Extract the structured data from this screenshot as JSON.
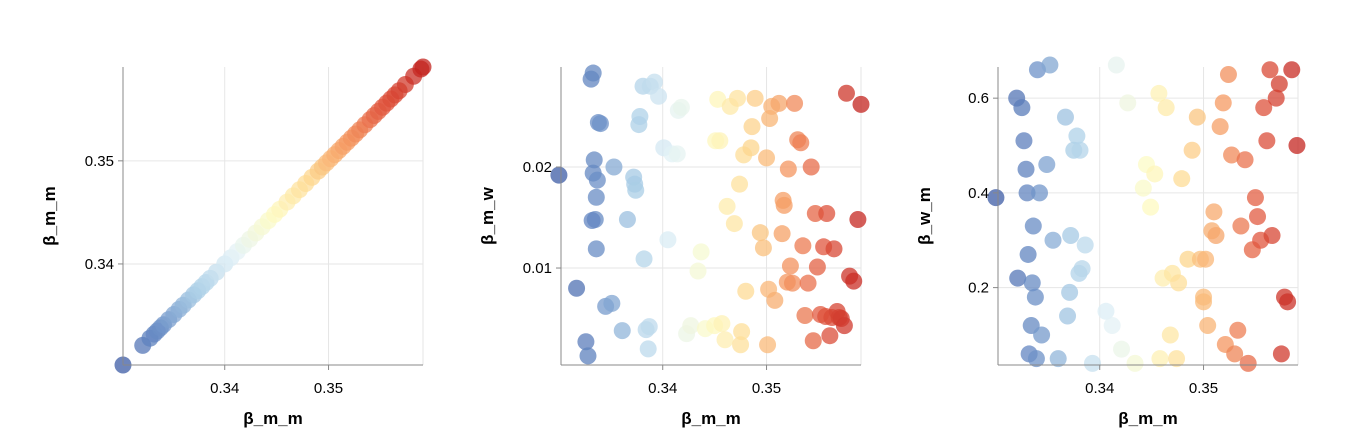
{
  "chart_data": [
    {
      "type": "scatter",
      "xlabel": "β_m_m",
      "ylabel": "β_m_m",
      "xlim": [
        0.3302,
        0.3591
      ],
      "ylim": [
        0.3302,
        0.3591
      ],
      "xticks": [
        0.34,
        0.35
      ],
      "xtick_labels": [
        "0.34",
        "0.35"
      ],
      "yticks": [
        0.34,
        0.35
      ],
      "ytick_labels": [
        "0.34",
        "0.35"
      ],
      "grid": true,
      "x": [
        0.3302,
        0.3321,
        0.3328,
        0.3332,
        0.3335,
        0.3338,
        0.3341,
        0.3346,
        0.3351,
        0.3356,
        0.336,
        0.3365,
        0.337,
        0.3374,
        0.3378,
        0.3382,
        0.3386,
        0.3392,
        0.34,
        0.3406,
        0.3412,
        0.3418,
        0.3424,
        0.343,
        0.3436,
        0.3442,
        0.3448,
        0.3453,
        0.346,
        0.3466,
        0.3472,
        0.3478,
        0.3484,
        0.349,
        0.3494,
        0.3498,
        0.3502,
        0.3506,
        0.351,
        0.3514,
        0.3518,
        0.3522,
        0.3526,
        0.353,
        0.3535,
        0.354,
        0.3544,
        0.3548,
        0.3552,
        0.3556,
        0.356,
        0.3564,
        0.3568,
        0.3574,
        0.3582,
        0.3589,
        0.3591
      ],
      "y": [
        0.3302,
        0.3321,
        0.3328,
        0.3332,
        0.3335,
        0.3338,
        0.3341,
        0.3346,
        0.3351,
        0.3356,
        0.336,
        0.3365,
        0.337,
        0.3374,
        0.3378,
        0.3382,
        0.3386,
        0.3392,
        0.34,
        0.3406,
        0.3412,
        0.3418,
        0.3424,
        0.343,
        0.3436,
        0.3442,
        0.3448,
        0.3453,
        0.346,
        0.3466,
        0.3472,
        0.3478,
        0.3484,
        0.349,
        0.3494,
        0.3498,
        0.3502,
        0.3506,
        0.351,
        0.3514,
        0.3518,
        0.3522,
        0.3526,
        0.353,
        0.3535,
        0.354,
        0.3544,
        0.3548,
        0.3552,
        0.3556,
        0.356,
        0.3564,
        0.3568,
        0.3574,
        0.3582,
        0.3589,
        0.3591
      ]
    },
    {
      "type": "scatter",
      "xlabel": "β_m_m",
      "ylabel": "β_m_w",
      "xlim": [
        0.3302,
        0.3591
      ],
      "ylim": [
        0.0004,
        0.0299
      ],
      "xticks": [
        0.34,
        0.35
      ],
      "xtick_labels": [
        "0.34",
        "0.35"
      ],
      "yticks": [
        0.01,
        0.02
      ],
      "ytick_labels": [
        "0.01",
        "0.02"
      ],
      "grid": true,
      "x": [
        0.33,
        0.3317,
        0.3326,
        0.3328,
        0.3331,
        0.3333,
        0.3333,
        0.3335,
        0.3336,
        0.3337,
        0.3338,
        0.334,
        0.3332,
        0.3334,
        0.3336,
        0.3345,
        0.3351,
        0.3353,
        0.3361,
        0.3366,
        0.3372,
        0.3373,
        0.3374,
        0.3377,
        0.3378,
        0.3381,
        0.3382,
        0.3384,
        0.3386,
        0.3387,
        0.3388,
        0.3392,
        0.3396,
        0.3401,
        0.3405,
        0.3409,
        0.3414,
        0.3415,
        0.3418,
        0.3423,
        0.3427,
        0.3434,
        0.3437,
        0.3441,
        0.345,
        0.3451,
        0.3453,
        0.3455,
        0.3457,
        0.346,
        0.3462,
        0.3465,
        0.3469,
        0.3472,
        0.3474,
        0.3475,
        0.3476,
        0.3478,
        0.348,
        0.3485,
        0.3486,
        0.3489,
        0.3494,
        0.3497,
        0.35,
        0.3501,
        0.3502,
        0.3503,
        0.3505,
        0.3508,
        0.3512,
        0.3515,
        0.3516,
        0.3517,
        0.352,
        0.3521,
        0.3523,
        0.3525,
        0.3527,
        0.353,
        0.3533,
        0.3535,
        0.3537,
        0.354,
        0.3543,
        0.3545,
        0.3547,
        0.3549,
        0.3552,
        0.3555,
        0.3557,
        0.3558,
        0.3561,
        0.3563,
        0.3565,
        0.3568,
        0.357,
        0.3572,
        0.3575,
        0.3577,
        0.358,
        0.3584,
        0.3588,
        0.3591
      ],
      "y": [
        0.0192,
        0.008,
        0.0027,
        0.0013,
        0.0287,
        0.0293,
        0.0194,
        0.0148,
        0.017,
        0.0187,
        0.0244,
        0.0243,
        0.0147,
        0.0207,
        0.0119,
        0.0062,
        0.0065,
        0.02,
        0.0038,
        0.0148,
        0.019,
        0.0183,
        0.0177,
        0.0242,
        0.025,
        0.028,
        0.0109,
        0.0039,
        0.002,
        0.0042,
        0.028,
        0.0284,
        0.027,
        0.0219,
        0.0128,
        0.0213,
        0.0213,
        0.0256,
        0.0259,
        0.0035,
        0.0043,
        0.0097,
        0.0116,
        0.004,
        0.0043,
        0.0226,
        0.0267,
        0.0226,
        0.0045,
        0.0029,
        0.0161,
        0.026,
        0.0144,
        0.0268,
        0.0183,
        0.0024,
        0.0037,
        0.0212,
        0.0077,
        0.0219,
        0.024,
        0.0268,
        0.0135,
        0.012,
        0.0209,
        0.0024,
        0.0079,
        0.0248,
        0.026,
        0.0068,
        0.0263,
        0.0134,
        0.0167,
        0.0162,
        0.0086,
        0.0198,
        0.0102,
        0.0085,
        0.0263,
        0.0227,
        0.0224,
        0.0122,
        0.0053,
        0.0085,
        0.02,
        0.0028,
        0.0154,
        0.0101,
        0.0054,
        0.0121,
        0.0052,
        0.0154,
        0.0033,
        0.0051,
        0.0119,
        0.0057,
        0.0051,
        0.005,
        0.0043,
        0.0273,
        0.0092,
        0.0087,
        0.0148,
        0.0262
      ]
    },
    {
      "type": "scatter",
      "xlabel": "β_m_m",
      "ylabel": "β_w_m",
      "xlim": [
        0.3302,
        0.3591
      ],
      "ylim": [
        0.0366,
        0.6658
      ],
      "xticks": [
        0.34,
        0.35
      ],
      "xtick_labels": [
        "0.34",
        "0.35"
      ],
      "yticks": [
        0.2,
        0.4,
        0.6
      ],
      "ytick_labels": [
        "0.2",
        "0.4",
        "0.6"
      ],
      "grid": true,
      "x": [
        0.33,
        0.332,
        0.3321,
        0.3325,
        0.3327,
        0.3329,
        0.333,
        0.3331,
        0.3332,
        0.3334,
        0.3335,
        0.3336,
        0.3338,
        0.3339,
        0.334,
        0.3342,
        0.3344,
        0.3349,
        0.3352,
        0.3355,
        0.336,
        0.3367,
        0.3369,
        0.3371,
        0.3372,
        0.3375,
        0.3378,
        0.338,
        0.3381,
        0.3383,
        0.3386,
        0.3393,
        0.3406,
        0.3412,
        0.3416,
        0.3421,
        0.3427,
        0.3434,
        0.3442,
        0.3445,
        0.3449,
        0.3453,
        0.3457,
        0.3458,
        0.3461,
        0.3464,
        0.3468,
        0.347,
        0.3474,
        0.3476,
        0.3479,
        0.3485,
        0.3489,
        0.3494,
        0.3497,
        0.35,
        0.35,
        0.3502,
        0.3504,
        0.3508,
        0.351,
        0.3512,
        0.3516,
        0.3519,
        0.3521,
        0.3524,
        0.3527,
        0.353,
        0.3533,
        0.3536,
        0.354,
        0.3543,
        0.3547,
        0.355,
        0.3552,
        0.3555,
        0.3558,
        0.3561,
        0.3564,
        0.3566,
        0.357,
        0.3573,
        0.3575,
        0.3578,
        0.3581,
        0.3585,
        0.359
      ],
      "y": [
        0.39,
        0.6,
        0.22,
        0.58,
        0.51,
        0.45,
        0.4,
        0.27,
        0.06,
        0.12,
        0.21,
        0.33,
        0.18,
        0.05,
        0.66,
        0.4,
        0.1,
        0.46,
        0.67,
        0.3,
        0.05,
        0.56,
        0.14,
        0.19,
        0.31,
        0.49,
        0.52,
        0.23,
        0.49,
        0.24,
        0.29,
        0.04,
        0.15,
        0.12,
        0.67,
        0.07,
        0.59,
        0.04,
        0.41,
        0.46,
        0.37,
        0.44,
        0.61,
        0.05,
        0.22,
        0.58,
        0.1,
        0.23,
        0.05,
        0.21,
        0.43,
        0.26,
        0.49,
        0.56,
        0.26,
        0.17,
        0.18,
        0.26,
        0.12,
        0.32,
        0.36,
        0.31,
        0.54,
        0.59,
        0.08,
        0.65,
        0.48,
        0.06,
        0.11,
        0.33,
        0.47,
        0.04,
        0.28,
        0.39,
        0.35,
        0.3,
        0.58,
        0.51,
        0.66,
        0.31,
        0.6,
        0.63,
        0.06,
        0.18,
        0.17,
        0.66,
        0.5
      ]
    }
  ]
}
